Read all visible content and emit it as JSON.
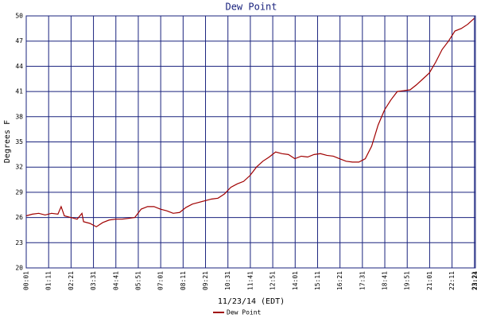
{
  "chart_data": {
    "type": "line",
    "title": "Dew Point",
    "x_label": "11/23/14 (EDT)",
    "y_label": "Degrees F",
    "xlim": [
      1,
      1404
    ],
    "ylim": [
      20,
      50
    ],
    "xticks": [
      {
        "value": 1,
        "label": "00:01"
      },
      {
        "value": 71,
        "label": "01:11"
      },
      {
        "value": 141,
        "label": "02:21"
      },
      {
        "value": 211,
        "label": "03:31"
      },
      {
        "value": 281,
        "label": "04:41"
      },
      {
        "value": 351,
        "label": "05:51"
      },
      {
        "value": 421,
        "label": "07:01"
      },
      {
        "value": 491,
        "label": "08:11"
      },
      {
        "value": 561,
        "label": "09:21"
      },
      {
        "value": 631,
        "label": "10:31"
      },
      {
        "value": 701,
        "label": "11:41"
      },
      {
        "value": 771,
        "label": "12:51"
      },
      {
        "value": 841,
        "label": "14:01"
      },
      {
        "value": 911,
        "label": "15:11"
      },
      {
        "value": 981,
        "label": "16:21"
      },
      {
        "value": 1051,
        "label": "17:31"
      },
      {
        "value": 1121,
        "label": "18:41"
      },
      {
        "value": 1191,
        "label": "19:51"
      },
      {
        "value": 1261,
        "label": "21:01"
      },
      {
        "value": 1331,
        "label": "22:11"
      },
      {
        "value": 1401,
        "label": "23:21"
      },
      {
        "value": 1404,
        "label": "23:24"
      }
    ],
    "yticks": [
      20,
      23,
      26,
      29,
      32,
      35,
      38,
      41,
      44,
      47,
      50
    ],
    "grid": true,
    "legend": "bottom",
    "x": [
      1,
      20,
      40,
      60,
      80,
      100,
      110,
      120,
      140,
      160,
      175,
      180,
      200,
      220,
      240,
      260,
      280,
      300,
      320,
      340,
      360,
      380,
      400,
      420,
      440,
      460,
      480,
      500,
      520,
      540,
      560,
      580,
      600,
      620,
      640,
      660,
      680,
      700,
      720,
      740,
      760,
      780,
      800,
      820,
      840,
      860,
      880,
      900,
      920,
      940,
      960,
      980,
      1000,
      1020,
      1040,
      1060,
      1080,
      1100,
      1120,
      1140,
      1160,
      1180,
      1200,
      1220,
      1240,
      1260,
      1280,
      1300,
      1320,
      1340,
      1360,
      1380,
      1400
    ],
    "series": [
      {
        "name": "Dew Point",
        "color": "#a00000",
        "values": [
          26.2,
          26.4,
          26.5,
          26.3,
          26.5,
          26.4,
          27.3,
          26.2,
          26.0,
          25.8,
          26.5,
          25.5,
          25.3,
          24.9,
          25.4,
          25.7,
          25.8,
          25.8,
          25.9,
          26.0,
          27.0,
          27.3,
          27.3,
          27.0,
          26.8,
          26.5,
          26.6,
          27.2,
          27.6,
          27.8,
          28.0,
          28.2,
          28.3,
          28.8,
          29.6,
          30.0,
          30.3,
          31.0,
          32.0,
          32.7,
          33.2,
          33.8,
          33.6,
          33.5,
          33.0,
          33.3,
          33.2,
          33.5,
          33.6,
          33.4,
          33.3,
          33.0,
          32.7,
          32.6,
          32.6,
          33.0,
          34.5,
          37.0,
          38.8,
          40.0,
          41.0,
          41.1,
          41.2,
          41.8,
          42.5,
          43.2,
          44.5,
          46.0,
          47.0,
          48.2,
          48.5,
          49.0,
          49.7
        ]
      }
    ]
  }
}
